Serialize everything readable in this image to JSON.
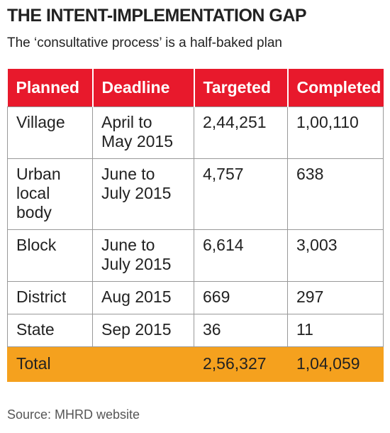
{
  "header": {
    "title": "THE INTENT-IMPLEMENTATION GAP",
    "subtitle": "The ‘consultative process’ is a half-baked plan"
  },
  "table": {
    "columns": [
      "Planned",
      "Deadline",
      "Targeted",
      "Completed"
    ],
    "rows": [
      [
        "Village",
        "April to\nMay 2015",
        "2,44,251",
        "1,00,110"
      ],
      [
        "Urban\nlocal\nbody",
        "June to\nJuly 2015",
        "4,757",
        "638"
      ],
      [
        "Block",
        "June to\nJuly 2015",
        "6,614",
        "3,003"
      ],
      [
        "District",
        "Aug 2015",
        "669",
        "297"
      ],
      [
        "State",
        "Sep 2015",
        "36",
        "11"
      ]
    ],
    "total": [
      "Total",
      "",
      "2,56,327",
      "1,04,059"
    ]
  },
  "footer": {
    "source": "Source: MHRD website"
  }
}
